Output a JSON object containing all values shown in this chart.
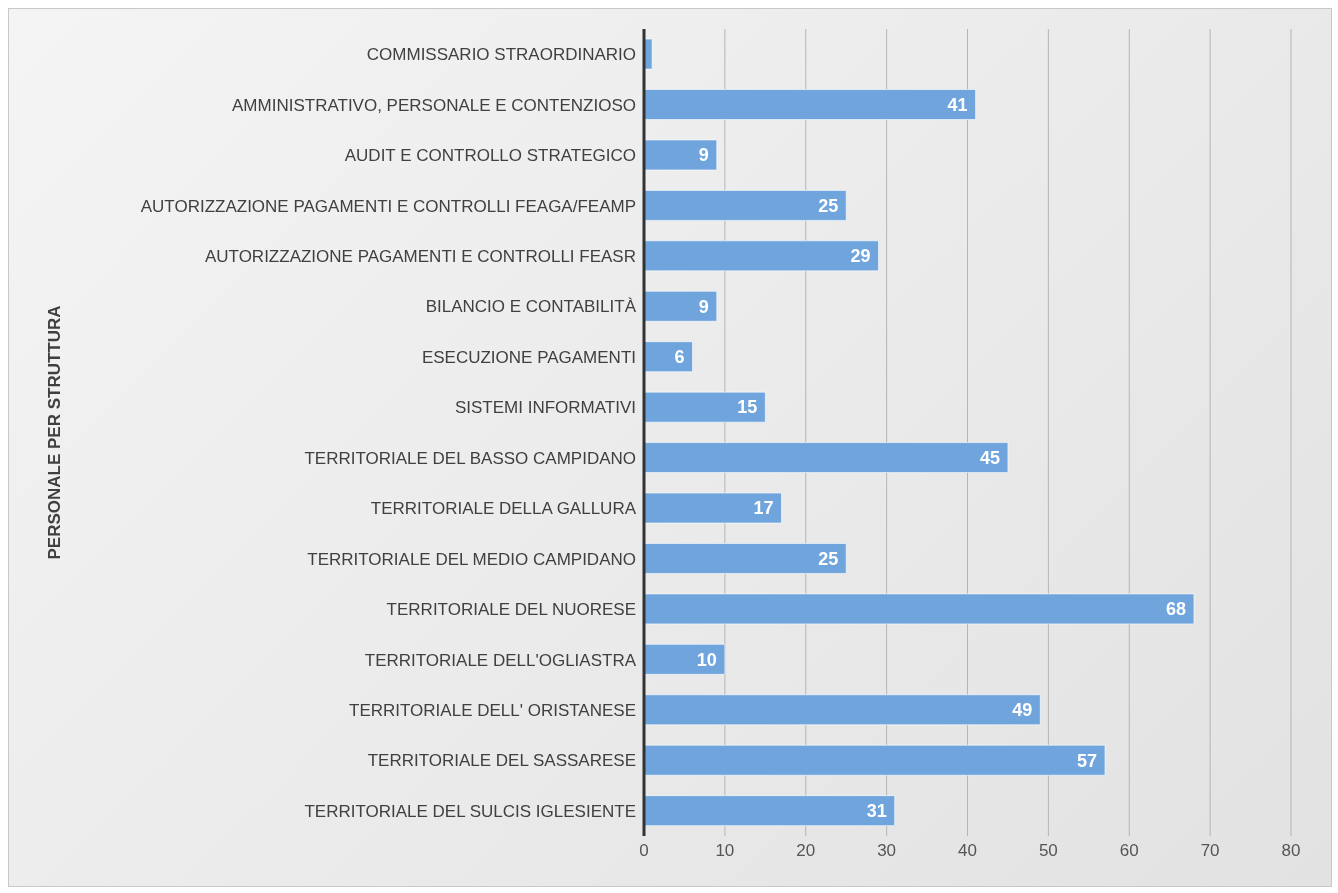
{
  "chart_data": {
    "type": "bar",
    "orientation": "horizontal",
    "ylabel": "PERSONALE PER STRUTTURA",
    "categories": [
      "COMMISSARIO STRAORDINARIO",
      "AMMINISTRATIVO, PERSONALE E CONTENZIOSO",
      "AUDIT E CONTROLLO STRATEGICO",
      "AUTORIZZAZIONE PAGAMENTI E CONTROLLI FEAGA/FEAMP",
      "AUTORIZZAZIONE PAGAMENTI E CONTROLLI FEASR",
      "BILANCIO E CONTABILITÀ",
      "ESECUZIONE PAGAMENTI",
      "SISTEMI INFORMATIVI",
      "TERRITORIALE DEL BASSO CAMPIDANO",
      "TERRITORIALE DELLA GALLURA",
      "TERRITORIALE DEL MEDIO CAMPIDANO",
      "TERRITORIALE DEL NUORESE",
      "TERRITORIALE DELL'OGLIASTRA",
      "TERRITORIALE DELL' ORISTANESE",
      "TERRITORIALE DEL SASSARESE",
      "TERRITORIALE DEL SULCIS IGLESIENTE"
    ],
    "values": [
      1,
      41,
      9,
      25,
      29,
      9,
      6,
      15,
      45,
      17,
      25,
      68,
      10,
      49,
      57,
      31
    ],
    "value_labels": [
      null,
      "41",
      "9",
      "25",
      "29",
      "9",
      "6",
      "15",
      "45",
      "17",
      "25",
      "68",
      "10",
      "49",
      "57",
      "31"
    ],
    "color": "#6fa5dc",
    "xlim": [
      0,
      80
    ],
    "xticks": [
      0,
      10,
      20,
      30,
      40,
      50,
      60,
      70,
      80
    ],
    "grid": "x"
  }
}
